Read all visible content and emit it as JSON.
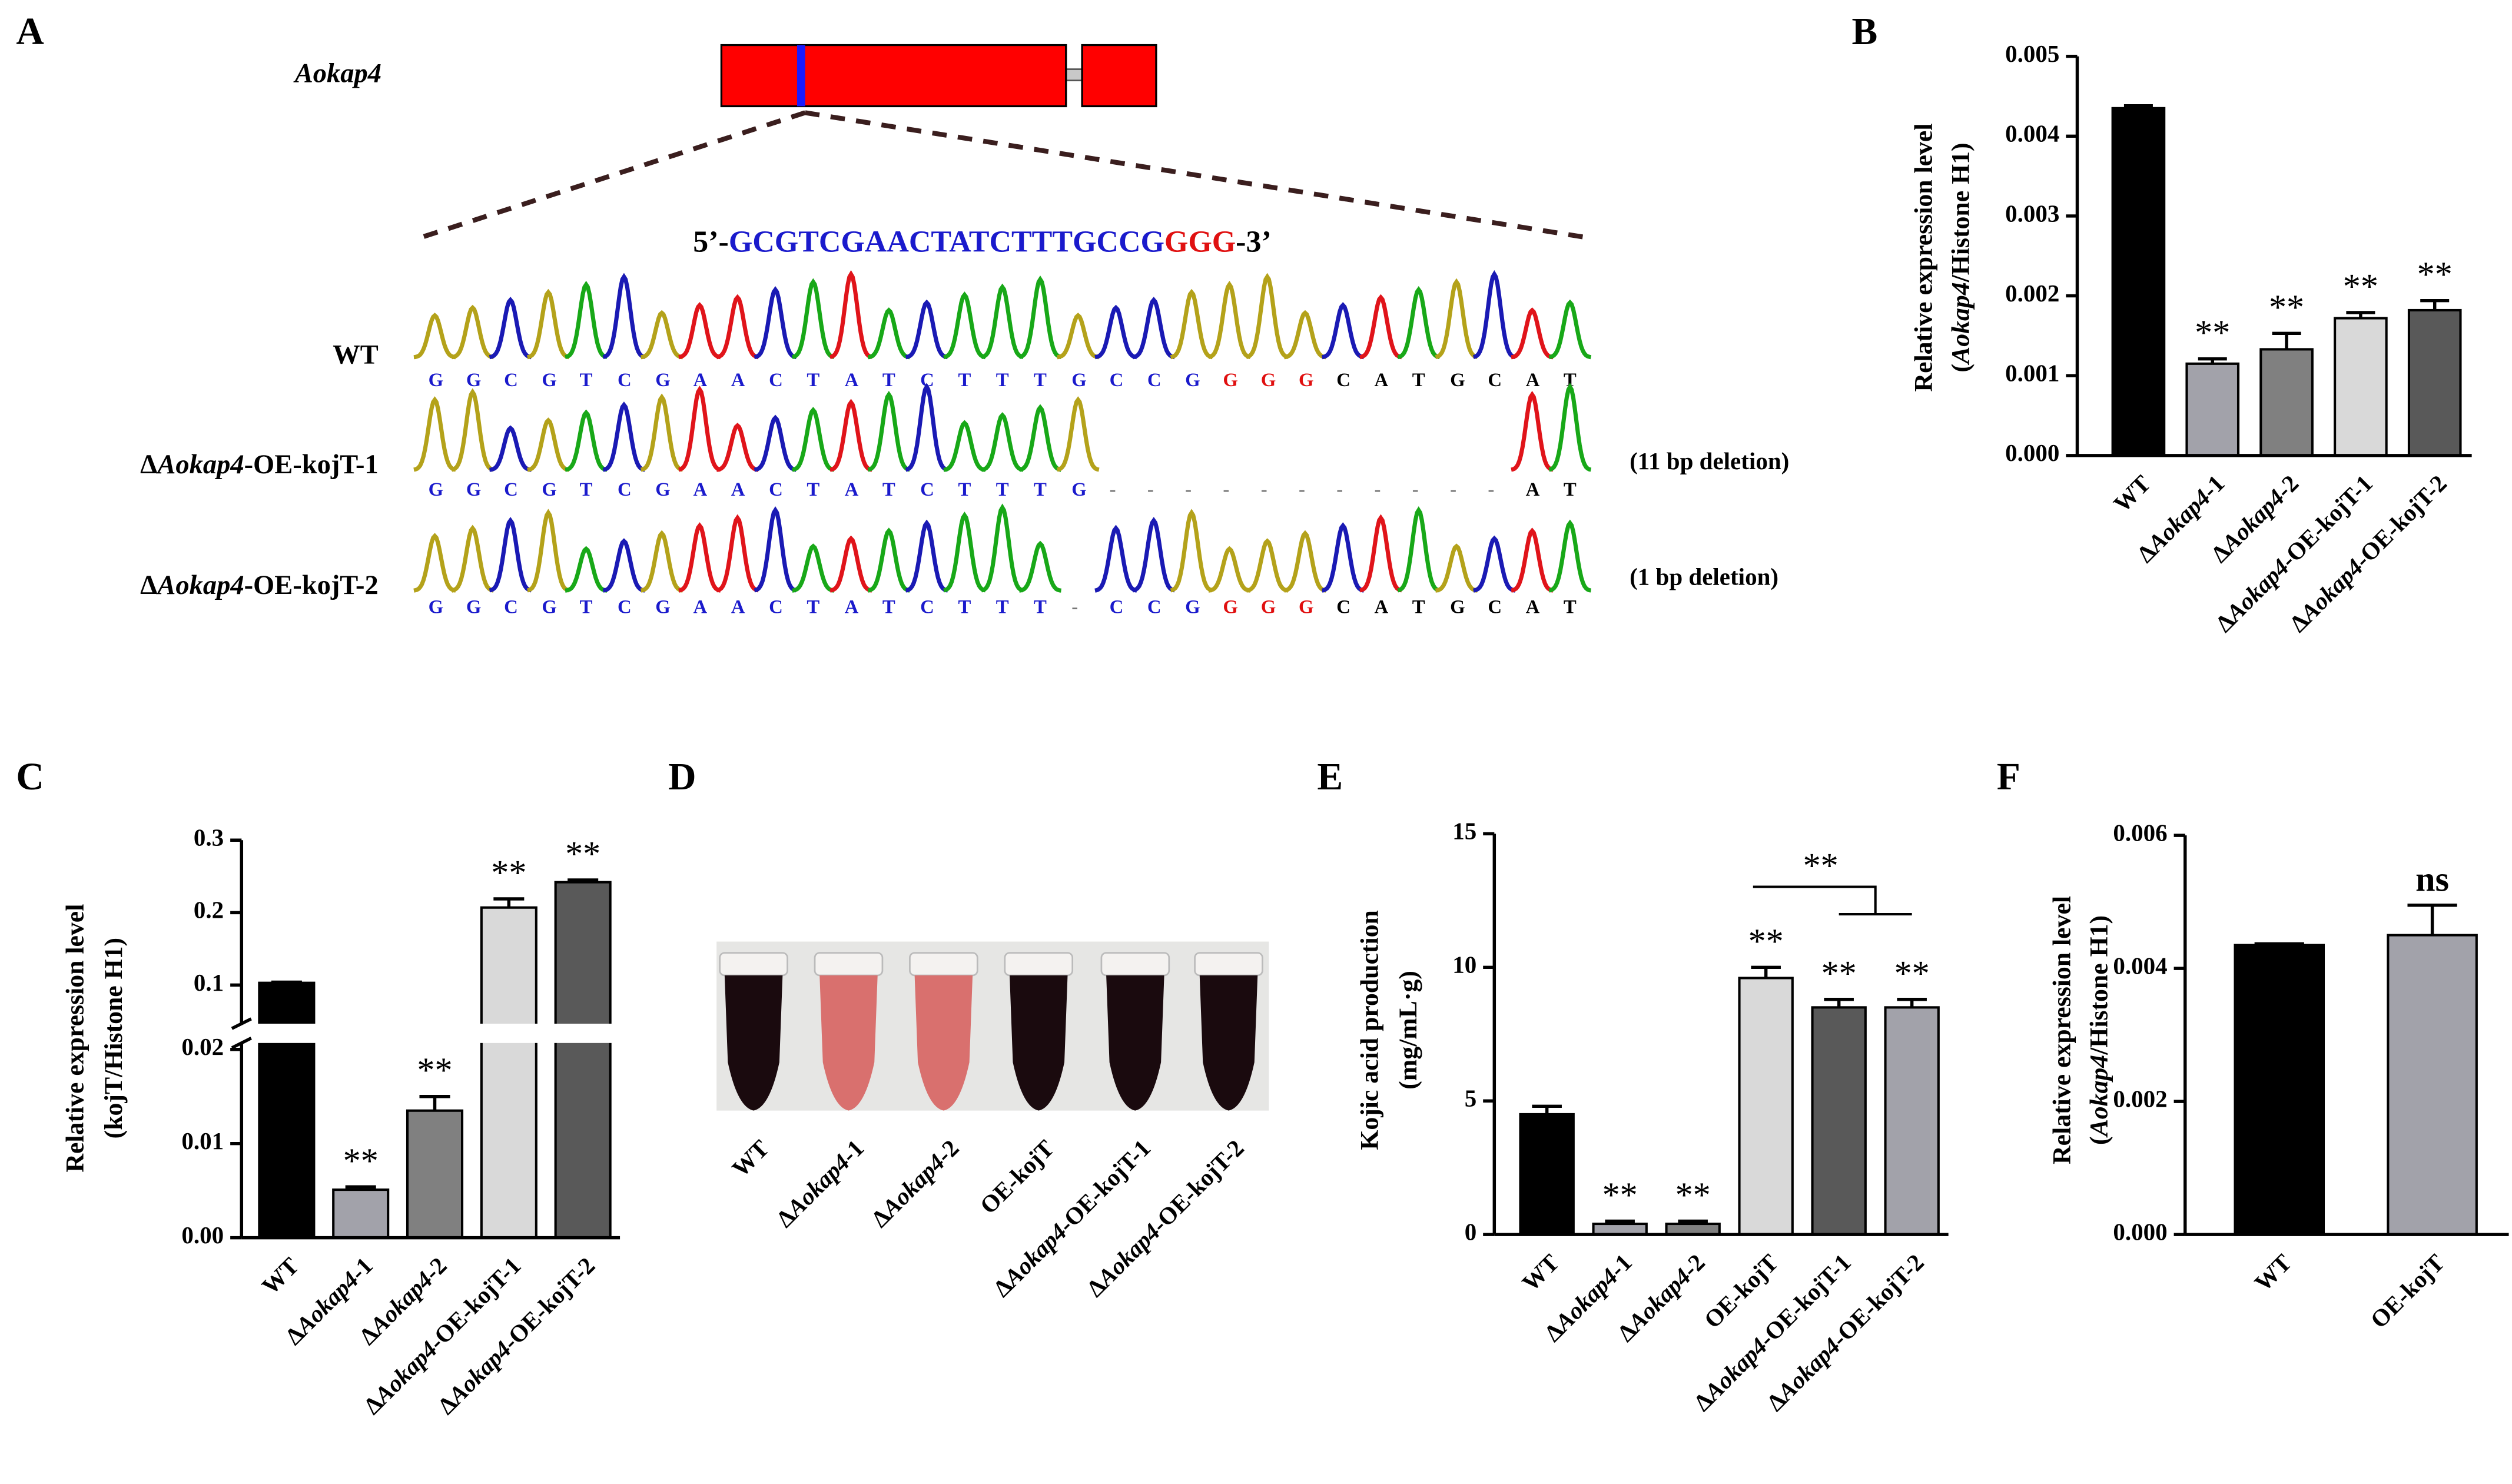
{
  "diagram": {
    "panel": "A",
    "gene": "Aokap4",
    "guide": {
      "prefix": "5’-",
      "target": "GCGTCGAACTATCTTTGCCG",
      "pam": "GGG",
      "suffix": "-3’"
    },
    "rows": [
      {
        "label": "WT",
        "bases": "GGCGTCGAACTATCTTTGCCGGGGCATGCAT",
        "note": null
      },
      {
        "label": "ΔAokap4-OE-kojT-1",
        "bases": "GGCGTCGAACTATCTTTG-----------AT",
        "note": "(11 bp deletion)"
      },
      {
        "label": "ΔAokap4-OE-kojT-2",
        "bases": "GGCGTCGAACTATCTTT-CCGGGGCATGCAT",
        "note": "(1 bp deletion)"
      }
    ]
  },
  "photo": {
    "panel": "D",
    "labels": [
      "WT",
      "ΔAokap4-1",
      "ΔAokap4-2",
      "OE-kojT",
      "ΔAokap4-OE-kojT-1",
      "ΔAokap4-OE-kojT-2"
    ],
    "tube_colors": [
      "#1a0a0e",
      "#d9706e",
      "#d9706e",
      "#1a0a0e",
      "#1a0a0e",
      "#1a0a0e"
    ]
  },
  "chart_data": [
    {
      "type": "bar",
      "panel": "B",
      "ylabel": [
        "Relative expression level",
        "(Aokap4/Histone H1)"
      ],
      "categories": [
        "WT",
        "ΔAokap4-1",
        "ΔAokap4-2",
        "ΔAokap4-OE-kojT-1",
        "ΔAokap4-OE-kojT-2"
      ],
      "values": [
        0.00435,
        0.00115,
        0.00133,
        0.00172,
        0.00182
      ],
      "errors": [
        3e-05,
        6e-05,
        0.0002,
        7e-05,
        0.00012
      ],
      "sig_labels": [
        null,
        "**",
        "**",
        "**",
        "**"
      ],
      "colors": [
        "#000000",
        "#a2a2aa",
        "#808080",
        "#d9d9d9",
        "#595959"
      ],
      "ylim": [
        0,
        0.005
      ],
      "yticks": [
        {
          "value": 0,
          "label": "0.000"
        },
        {
          "value": 0.001,
          "label": "0.001"
        },
        {
          "value": 0.002,
          "label": "0.002"
        },
        {
          "value": 0.003,
          "label": "0.003"
        },
        {
          "value": 0.004,
          "label": "0.004"
        },
        {
          "value": 0.005,
          "label": "0.005"
        }
      ]
    },
    {
      "type": "bar",
      "panel": "C",
      "ylabel": [
        "Relative expression level",
        "(kojT/Histone H1)"
      ],
      "categories": [
        "WT",
        "ΔAokap4-1",
        "ΔAokap4-2",
        "ΔAokap4-OE-kojT-1",
        "ΔAokap4-OE-kojT-2"
      ],
      "values": [
        0.103,
        0.0051,
        0.0135,
        0.207,
        0.242
      ],
      "errors": [
        0.001,
        0.0003,
        0.0015,
        0.012,
        0.003
      ],
      "sig_labels": [
        null,
        "**",
        "**",
        "**",
        "**"
      ],
      "colors": [
        "#000000",
        "#a2a2aa",
        "#808080",
        "#d9d9d9",
        "#595959"
      ],
      "ylim": [
        0,
        0.3
      ],
      "ybreak": [
        0.02,
        0.1
      ],
      "yticks": [
        {
          "value": 0,
          "label": "0.00"
        },
        {
          "value": 0.01,
          "label": "0.01"
        },
        {
          "value": 0.02,
          "label": "0.02"
        },
        0.1,
        0.2,
        0.3
      ]
    },
    {
      "type": "bar",
      "panel": "E",
      "ylabel": [
        "Kojic acid production",
        "(mg/mL·g)"
      ],
      "categories": [
        "WT",
        "ΔAokap4-1",
        "ΔAokap4-2",
        "OE-kojT",
        "ΔAokap4-OE-kojT-1",
        "ΔAokap4-OE-kojT-2"
      ],
      "values": [
        4.5,
        0.4,
        0.4,
        9.6,
        8.5,
        8.5
      ],
      "errors": [
        0.3,
        0.1,
        0.1,
        0.4,
        0.3,
        0.3
      ],
      "sig_labels": [
        null,
        "**",
        "**",
        "**",
        "**",
        "**"
      ],
      "bracket_label": "**",
      "colors": [
        "#000000",
        "#a2a2aa",
        "#808080",
        "#d9d9d9",
        "#595959",
        "#a2a2aa"
      ],
      "ylim": [
        0,
        15
      ],
      "yticks": [
        0,
        5,
        10,
        15
      ]
    },
    {
      "type": "bar",
      "panel": "F",
      "ylabel": [
        "Relative expression level",
        "(Aokap4/Histone H1)"
      ],
      "categories": [
        "WT",
        "OE-kojT"
      ],
      "values": [
        0.00435,
        0.0045
      ],
      "errors": [
        2e-05,
        0.00045
      ],
      "sig_labels": [
        null,
        "ns"
      ],
      "colors": [
        "#000000",
        "#a2a2aa"
      ],
      "ylim": [
        0,
        0.006
      ],
      "yticks": [
        {
          "value": 0,
          "label": "0.000"
        },
        {
          "value": 0.002,
          "label": "0.002"
        },
        {
          "value": 0.004,
          "label": "0.004"
        },
        {
          "value": 0.006,
          "label": "0.006"
        }
      ]
    }
  ]
}
